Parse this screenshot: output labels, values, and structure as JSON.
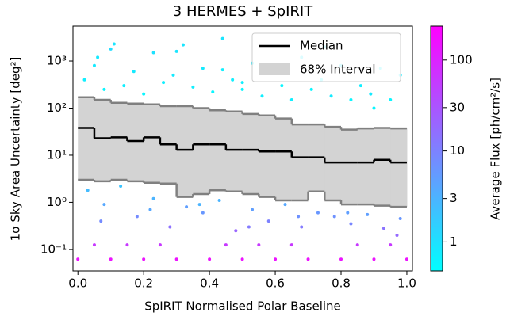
{
  "chart_data": {
    "type": "scatter",
    "title": "3 HERMES + SpIRIT",
    "xlabel": "SpIRIT Normalised Polar Baseline",
    "ylabel": "1σ Sky Area Uncertainty [deg²]",
    "colorbar_label": "Average Flux [ph/cm²/s]",
    "xlim": [
      -0.015,
      1.017
    ],
    "ylim": [
      0.035,
      5500
    ],
    "ylog": true,
    "xticks": [
      {
        "value": 0,
        "label": "0.0"
      },
      0.2,
      0.4,
      0.6,
      0.8,
      {
        "value": 1,
        "label": "1.0"
      }
    ],
    "yticks": [
      {
        "value": 0.1,
        "label": "10⁻¹"
      },
      {
        "value": 1,
        "label": "10⁰"
      },
      {
        "value": 10,
        "label": "10¹"
      },
      {
        "value": 100,
        "label": "10²"
      },
      {
        "value": 1000,
        "label": "10³"
      }
    ],
    "clim": [
      0.48,
      236
    ],
    "cticks": [
      1,
      3,
      10,
      30,
      100
    ],
    "colormap": [
      "#00ffff",
      "#ff00ff"
    ],
    "legend_position": "upper right",
    "points": {
      "x": [
        0.02,
        0.05,
        0.08,
        0.11,
        0.14,
        0.17,
        0.2,
        0.23,
        0.26,
        0.29,
        0.32,
        0.35,
        0.38,
        0.41,
        0.44,
        0.47,
        0.5,
        0.53,
        0.56,
        0.59,
        0.62,
        0.65,
        0.68,
        0.71,
        0.74,
        0.77,
        0.8,
        0.83,
        0.86,
        0.89,
        0.92,
        0.95,
        0.98,
        0.1,
        0.3,
        0.44,
        0.06,
        0.5,
        0.75,
        0.9,
        0.0,
        0.1,
        0.2,
        0.3,
        0.4,
        0.5,
        0.6,
        0.7,
        0.8,
        0.9,
        1.0,
        0.05,
        0.25,
        0.45,
        0.65,
        0.85,
        0.15,
        0.55,
        0.95,
        0.03,
        0.08,
        0.13,
        0.18,
        0.23,
        0.28,
        0.33,
        0.38,
        0.43,
        0.48,
        0.53,
        0.58,
        0.63,
        0.68,
        0.73,
        0.78,
        0.83,
        0.88,
        0.93,
        0.98,
        0.07,
        0.22,
        0.37,
        0.52,
        0.67,
        0.82,
        0.97
      ],
      "y": [
        400,
        800,
        250,
        2300,
        300,
        600,
        200,
        1500,
        350,
        500,
        2200,
        280,
        700,
        220,
        3000,
        400,
        250,
        900,
        180,
        600,
        300,
        150,
        1200,
        250,
        400,
        180,
        800,
        150,
        300,
        200,
        700,
        150,
        500,
        1800,
        1600,
        650,
        1200,
        350,
        2000,
        100,
        0.062,
        0.062,
        0.062,
        0.062,
        0.062,
        0.062,
        0.062,
        0.062,
        0.062,
        0.062,
        0.062,
        0.125,
        0.125,
        0.125,
        0.125,
        0.125,
        0.125,
        0.125,
        0.125,
        1.8,
        0.9,
        2.2,
        0.5,
        1.2,
        0.3,
        0.8,
        0.6,
        1.1,
        0.25,
        0.7,
        0.4,
        0.9,
        0.3,
        0.6,
        0.5,
        0.35,
        0.55,
        0.28,
        0.45,
        0.4,
        0.7,
        0.9,
        0.3,
        0.5,
        0.6,
        0.2
      ],
      "flux": [
        0.7,
        0.8,
        0.6,
        0.9,
        0.7,
        0.8,
        0.6,
        1.0,
        0.7,
        0.8,
        0.9,
        0.7,
        0.8,
        0.6,
        0.9,
        0.7,
        0.6,
        0.8,
        0.7,
        0.9,
        0.6,
        0.7,
        0.8,
        0.6,
        0.7,
        0.8,
        0.9,
        0.6,
        0.7,
        0.8,
        0.7,
        0.6,
        0.8,
        1.1,
        0.9,
        0.7,
        0.8,
        0.7,
        0.9,
        0.6,
        150,
        150,
        150,
        150,
        150,
        150,
        150,
        150,
        150,
        150,
        150,
        60,
        60,
        60,
        60,
        60,
        60,
        60,
        60,
        2.5,
        4,
        2,
        8,
        3,
        15,
        5,
        6,
        3,
        20,
        5,
        10,
        4,
        12,
        6,
        7,
        9,
        5,
        14,
        6,
        8,
        4,
        3,
        12,
        7,
        5,
        18
      ]
    },
    "bins": [
      0,
      0.05,
      0.1,
      0.15,
      0.2,
      0.25,
      0.3,
      0.35,
      0.4,
      0.45,
      0.5,
      0.55,
      0.6,
      0.65,
      0.7,
      0.75,
      0.8,
      0.85,
      0.9,
      0.95,
      1.0
    ],
    "series": [
      {
        "name": "Median",
        "color": "#000000",
        "values": [
          38,
          23,
          24,
          20,
          24,
          17,
          13,
          17,
          17,
          13,
          13,
          12,
          12,
          9,
          9,
          7,
          7,
          7,
          8,
          7
        ]
      },
      {
        "name": "68% Interval",
        "color": "#d3d3d3",
        "edge_color": "#808080",
        "upper": [
          170,
          150,
          130,
          125,
          120,
          110,
          110,
          100,
          90,
          85,
          75,
          70,
          60,
          45,
          45,
          40,
          35,
          37,
          38,
          37
        ],
        "lower": [
          3,
          2.8,
          3,
          2.8,
          2.6,
          2.5,
          1.3,
          1.5,
          1.8,
          1.7,
          1.5,
          1.3,
          1.1,
          1.1,
          1.7,
          1.1,
          0.9,
          0.9,
          0.85,
          0.8
        ]
      }
    ]
  }
}
